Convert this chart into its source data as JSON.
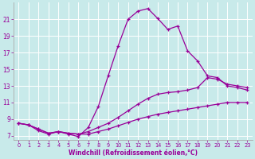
{
  "xlabel": "Windchill (Refroidissement éolien,°C)",
  "bg_color": "#c8eaea",
  "line_color": "#990099",
  "grid_color": "#ffffff",
  "xlim": [
    -0.5,
    23.5
  ],
  "ylim": [
    6.5,
    23.0
  ],
  "yticks": [
    7,
    9,
    11,
    13,
    15,
    17,
    19,
    21
  ],
  "xticks": [
    0,
    1,
    2,
    3,
    4,
    5,
    6,
    7,
    8,
    9,
    10,
    11,
    12,
    13,
    14,
    15,
    16,
    17,
    18,
    19,
    20,
    21,
    22,
    23
  ],
  "curve1_x": [
    0,
    1,
    2,
    3,
    4,
    5,
    6,
    7,
    8,
    9,
    10,
    11,
    12,
    13,
    14,
    15,
    16,
    17,
    18,
    19,
    20,
    21,
    22,
    23
  ],
  "curve1_y": [
    8.5,
    8.3,
    7.6,
    7.2,
    7.5,
    7.2,
    6.9,
    8.0,
    10.5,
    14.2,
    17.8,
    21.0,
    22.0,
    22.3,
    21.1,
    19.8,
    20.2,
    17.2,
    16.0,
    14.2,
    14.0,
    13.0,
    12.8,
    12.5
  ],
  "curve2_x": [
    0,
    1,
    2,
    3,
    4,
    5,
    6,
    7,
    8,
    9,
    10,
    11,
    12,
    13,
    14,
    15,
    16,
    17,
    18,
    19,
    20,
    21,
    22,
    23
  ],
  "curve2_y": [
    8.5,
    8.3,
    7.8,
    7.3,
    7.5,
    7.3,
    7.2,
    7.5,
    8.0,
    8.5,
    9.2,
    10.0,
    10.8,
    11.5,
    12.0,
    12.2,
    12.3,
    12.5,
    12.8,
    14.0,
    13.8,
    13.2,
    13.0,
    12.8
  ],
  "curve3_x": [
    0,
    1,
    2,
    3,
    4,
    5,
    6,
    7,
    8,
    9,
    10,
    11,
    12,
    13,
    14,
    15,
    16,
    17,
    18,
    19,
    20,
    21,
    22,
    23
  ],
  "curve3_y": [
    8.5,
    8.3,
    7.8,
    7.3,
    7.5,
    7.3,
    7.2,
    7.2,
    7.5,
    7.8,
    8.2,
    8.6,
    9.0,
    9.3,
    9.6,
    9.8,
    10.0,
    10.2,
    10.4,
    10.6,
    10.8,
    11.0,
    11.0,
    11.0
  ]
}
